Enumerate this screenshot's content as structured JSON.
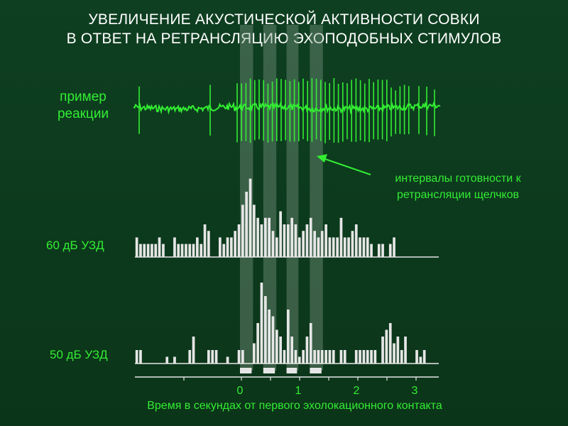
{
  "title": {
    "line1": "УВЕЛИЧЕНИЕ АКУСТИЧЕСКОЙ АКТИВНОСТИ СОВКИ",
    "line2": "В ОТВЕТ НА  РЕТРАНСЛЯЦИЮ ЭХОПОДОБНЫХ СТИМУЛОВ"
  },
  "example_label": {
    "line1": "пример",
    "line2": "реакции"
  },
  "annotation": {
    "line1": "интервалы готовности к",
    "line2": "ретрансляции щелчков"
  },
  "colors": {
    "background": "#0c3a1e",
    "trace": "#33ee33",
    "bars": "#e6e6e6",
    "highlight": "#7f9a86",
    "text_green": "#33ee33",
    "title": "#ffffff"
  },
  "chart_data": {
    "type": "bar",
    "xlabel": "Время в секундах от первого эхолокационного контакта",
    "x_ticks": [
      "0",
      "1",
      "2",
      "3"
    ],
    "xlim": [
      -1.85,
      3.4
    ],
    "bin_width": 0.065,
    "bin_start": -1.82,
    "ready_intervals": [
      [
        0,
        0.2
      ],
      [
        0.4,
        0.6
      ],
      [
        0.8,
        0.98
      ],
      [
        1.2,
        1.4
      ]
    ],
    "stimulus_marks": [
      [
        0,
        0.2
      ],
      [
        0.4,
        0.6
      ],
      [
        0.8,
        0.98
      ],
      [
        1.2,
        1.4
      ]
    ],
    "series": [
      {
        "name": "60 дБ УЗД",
        "values": [
          3,
          2,
          2,
          2,
          2,
          2,
          3,
          2,
          0,
          0,
          3,
          2,
          2,
          2,
          2,
          2,
          3,
          2,
          5,
          4,
          0,
          0,
          3,
          2,
          3,
          3,
          4,
          5,
          8,
          10,
          12,
          8,
          6,
          5,
          6,
          6,
          4,
          3,
          7,
          5,
          5,
          6,
          5,
          3,
          4,
          5,
          6,
          4,
          3,
          4,
          5,
          3,
          3,
          3,
          6,
          3,
          3,
          4,
          5,
          3,
          3,
          3,
          2,
          0,
          2,
          2,
          0,
          2,
          3,
          0,
          0,
          0,
          0,
          0,
          0,
          0
        ]
      },
      {
        "name": "50 дБ УЗД",
        "values": [
          2,
          2,
          0,
          0,
          0,
          0,
          0,
          0,
          1,
          0,
          1,
          0,
          0,
          0,
          2,
          4,
          0,
          0,
          0,
          2,
          2,
          2,
          0,
          0,
          1,
          0,
          0,
          2,
          2,
          0,
          0,
          3,
          6,
          12,
          10,
          8,
          7,
          5,
          4,
          2,
          8,
          4,
          2,
          1,
          2,
          4,
          6,
          2,
          2,
          2,
          2,
          2,
          2,
          0,
          2,
          2,
          0,
          0,
          2,
          2,
          2,
          2,
          2,
          2,
          0,
          4,
          5,
          6,
          3,
          4,
          2,
          4,
          0,
          0,
          2,
          1,
          2
        ]
      }
    ]
  }
}
